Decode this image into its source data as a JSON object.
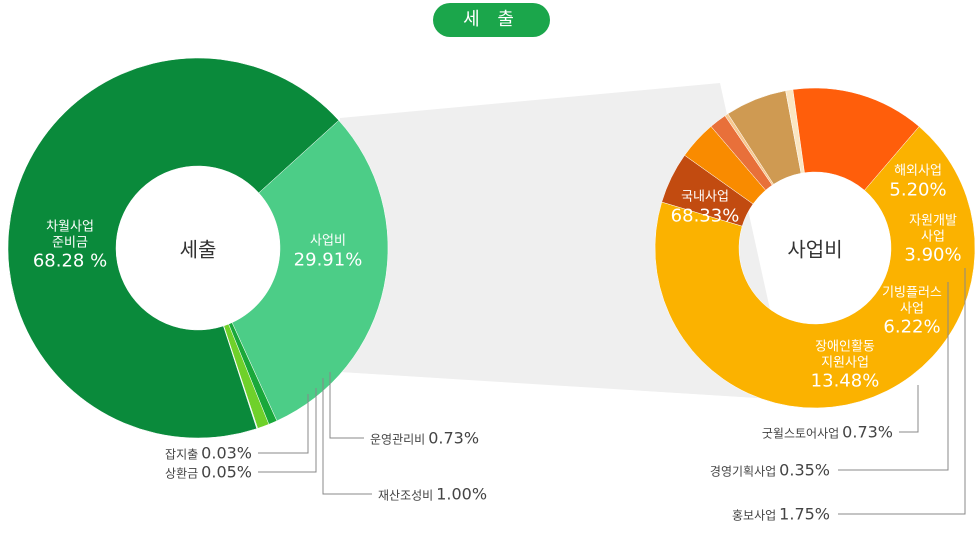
{
  "heading": "세 출",
  "chart_data": [
    {
      "type": "donut",
      "title": "세출",
      "categories": [
        "사업비",
        "운영관리비",
        "재산조성비",
        "상환금",
        "잡지출",
        "차월사업\n준비금"
      ],
      "values": [
        29.91,
        0.73,
        1.0,
        0.05,
        0.03,
        68.28
      ],
      "value_labels": [
        "29.91%",
        "0.73%",
        "1.00%",
        "0.05%",
        "0.03%",
        "68.28 %"
      ],
      "colors": [
        "#4ccd87",
        "#19a83a",
        "#6fd12a",
        "#7fe3c6",
        "#245c3e",
        "#0a8a3b"
      ]
    },
    {
      "type": "donut",
      "title": "사업비",
      "categories": [
        "국내사업",
        "해외사업",
        "자원개발사업",
        "홍보사업",
        "경영기획사업",
        "기빙플러스\n사업",
        "굿윌스토어사업",
        "장애인활동\n지원사업"
      ],
      "values": [
        68.33,
        5.2,
        3.9,
        1.75,
        0.35,
        6.22,
        0.73,
        13.48
      ],
      "value_labels": [
        "68.33%",
        "5.20%",
        "3.90%",
        "1.75%",
        "0.35%",
        "6.22%",
        "0.73%",
        "13.48%"
      ],
      "colors": [
        "#fbb200",
        "#c24b10",
        "#f98b00",
        "#e8703a",
        "#f7c88f",
        "#cf9a52",
        "#fbe6c2",
        "#ff5e0b"
      ]
    }
  ]
}
